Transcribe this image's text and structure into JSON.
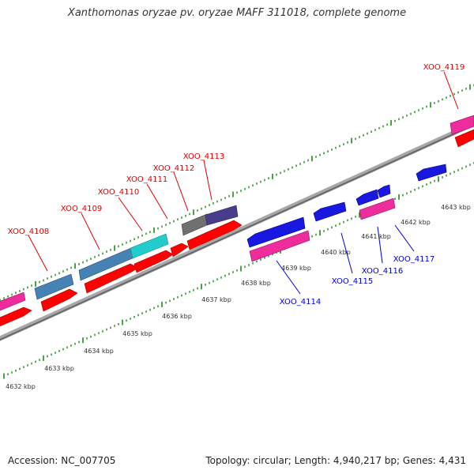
{
  "title": "Xanthomonas oryzae pv. oryzae MAFF 311018, complete genome",
  "footer": {
    "accession": "Accession: NC_007705",
    "summary": "Topology: circular; Length: 4,940,217 bp; Genes: 4,431"
  },
  "colors": {
    "strand_line": "#8a8a8a",
    "tick": "#1a8a1a",
    "gene_forward_label": "#dd0000",
    "gene_reverse_label": "#0000cc",
    "cds_red": "#ff0000",
    "cds_pink": "#ee2c9c",
    "cds_blue": "#1818e0",
    "cds_steelblue": "#4682b4",
    "cds_cyan": "#22cccc",
    "cds_gray": "#707070",
    "cds_slate": "#483d8b"
  },
  "scale_labels": [
    "4632 kbp",
    "4633 kbp",
    "4634 kbp",
    "4635 kbp",
    "4636 kbp",
    "4637 kbp",
    "4638 kbp",
    "4639 kbp",
    "4640 kbp",
    "4641 kbp",
    "4642 kbp",
    "4643 kbp"
  ],
  "forward_genes": [
    "XOO_4108",
    "XOO_4109",
    "XOO_4110",
    "XOO_4111",
    "XOO_4112",
    "XOO_4113",
    "XOO_4119"
  ],
  "reverse_genes": [
    "XOO_4114",
    "XOO_4115",
    "XOO_4116",
    "XOO_4117"
  ]
}
